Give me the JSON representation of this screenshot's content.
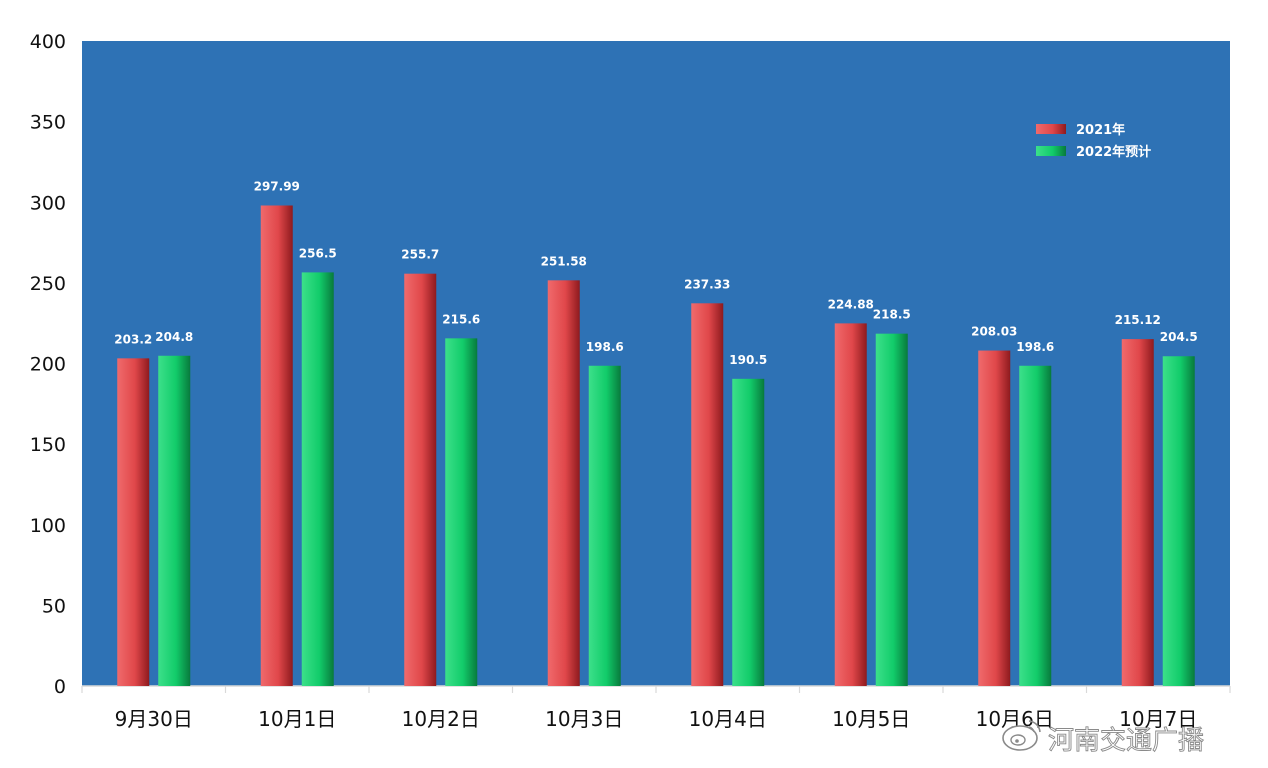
{
  "chart_data": {
    "type": "bar",
    "categories": [
      "9月30日",
      "10月1日",
      "10月2日",
      "10月3日",
      "10月4日",
      "10月5日",
      "10月6日",
      "10月7日"
    ],
    "series": [
      {
        "name": "2021年",
        "values": [
          203.2,
          297.99,
          255.7,
          251.58,
          237.33,
          224.88,
          208.03,
          215.12
        ],
        "labels": [
          "203.2",
          "297.99",
          "255.7",
          "251.58",
          "237.33",
          "224.88",
          "208.03",
          "215.12"
        ]
      },
      {
        "name": "2022年预计",
        "values": [
          204.8,
          256.5,
          215.6,
          198.6,
          190.5,
          218.5,
          198.6,
          204.5
        ],
        "labels": [
          "204.8",
          "256.5",
          "215.6",
          "198.6",
          "190.5",
          "218.5",
          "198.6",
          "204.5"
        ]
      }
    ],
    "ylim": [
      0,
      400
    ],
    "yticks": [
      "0",
      "50",
      "100",
      "150",
      "200",
      "250",
      "300",
      "350",
      "400"
    ],
    "grid": false,
    "legend_position": "top-right",
    "plot_background": "#2E72B5",
    "series_colors": [
      "#E0474A",
      "#12CC6A"
    ]
  },
  "watermark": {
    "text": "河南交通广播",
    "icon": "weibo-icon"
  }
}
